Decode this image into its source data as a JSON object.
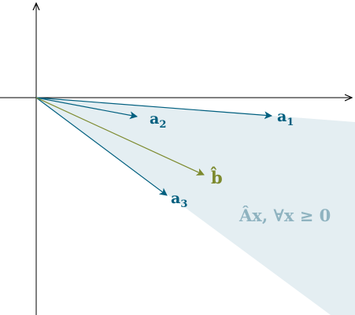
{
  "colors": {
    "vector": "#005f7f",
    "projection": "#7d8a2e",
    "region_fill": "#e4eef2",
    "region_text": "#8fb3c0",
    "axis": "#000000"
  },
  "labels": {
    "a1": {
      "base": "a",
      "sub": "1"
    },
    "a2": {
      "base": "a",
      "sub": "2"
    },
    "a3": {
      "base": "a",
      "sub": "3"
    },
    "b_hat": "b̂",
    "region": "Âx, ∀x ≥ 0"
  }
}
